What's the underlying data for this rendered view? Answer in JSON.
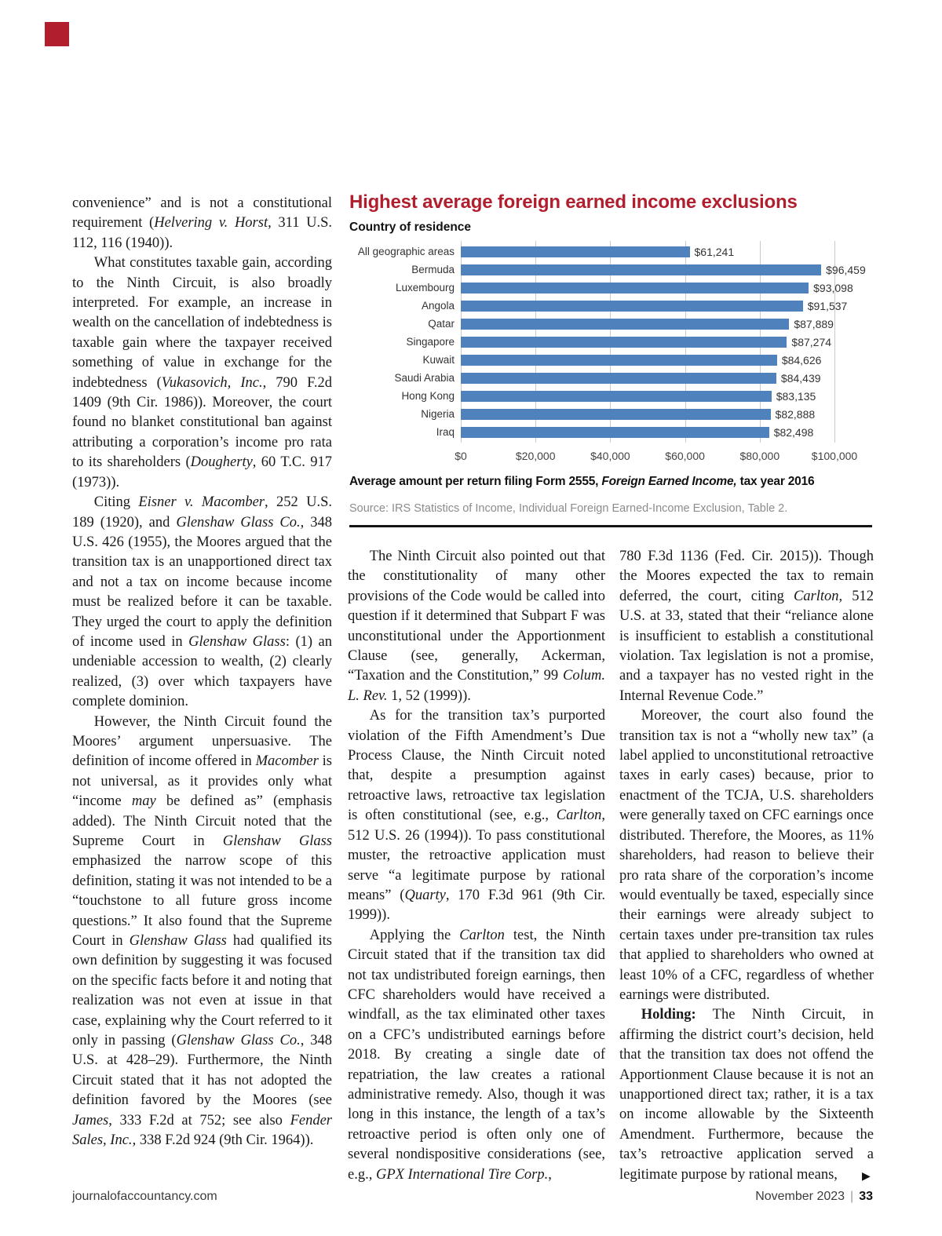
{
  "colors": {
    "accent_red": "#b11e2e",
    "bar_blue": "#4f81bd",
    "grid_gray": "#c9c9c9"
  },
  "page": {
    "footer_left": "journalofaccountancy.com",
    "footer_date": "November 2023",
    "footer_separator": "|",
    "footer_page": "33",
    "continued_marker": "▶"
  },
  "chart_data": {
    "type": "bar",
    "orientation": "horizontal",
    "title": "Highest average foreign earned income exclusions",
    "axis_label": "Country of residence",
    "categories": [
      "All geographic areas",
      "Bermuda",
      "Luxembourg",
      "Angola",
      "Qatar",
      "Singapore",
      "Kuwait",
      "Saudi Arabia",
      "Hong Kong",
      "Nigeria",
      "Iraq"
    ],
    "values": [
      61241,
      96459,
      93098,
      91537,
      87889,
      87274,
      84626,
      84439,
      83135,
      82888,
      82498
    ],
    "value_labels": [
      "$61,241",
      "$96,459",
      "$93,098",
      "$91,537",
      "$87,889",
      "$87,274",
      "$84,626",
      "$84,439",
      "$83,135",
      "$82,888",
      "$82,498"
    ],
    "x_ticks": [
      "$0",
      "$20,000",
      "$40,000",
      "$60,000",
      "$80,000",
      "$100,000"
    ],
    "xlim": [
      0,
      100000
    ],
    "bar_color": "#4f81bd",
    "grid": true,
    "legend": "none",
    "caption": "Average amount per return filing Form 2555, *Foreign Earned Income,* tax year 2016",
    "source": "Source: IRS Statistics of Income, Individual Foreign Earned-Income Exclusion, Table 2."
  },
  "article": {
    "col1": [
      {
        "indent": false,
        "text": "convenience” and is not a constitutional requirement (*Helvering v. Horst*, 311 U.S. 112, 116 (1940))."
      },
      {
        "indent": true,
        "text": "What constitutes taxable gain, according to the Ninth Circuit, is also broadly interpreted. For example, an increase in wealth on the cancellation of indebtedness is taxable gain where the taxpayer received something of value in exchange for the indebtedness (*Vukasovich, Inc.*, 790 F.2d 1409 (9th Cir. 1986)). Moreover, the court found no blanket constitutional ban against attributing a corporation’s income pro rata to its shareholders (*Dougherty*, 60 T.C. 917 (1973))."
      },
      {
        "indent": true,
        "text": "Citing *Eisner v. Macomber*, 252 U.S. 189 (1920), and *Glenshaw Glass Co.*, 348 U.S. 426 (1955), the Moores argued that the transition tax is an unapportioned direct tax and not a tax on income because income must be realized before it can be taxable. They urged the court to apply the definition of income used in *Glenshaw Glass*: (1) an undeniable accession to wealth, (2) clearly realized, (3) over which taxpayers have complete dominion."
      },
      {
        "indent": true,
        "text": "However, the Ninth Circuit found the Moores’ argument unpersuasive. The definition of income offered in *Macomber* is not universal, as it provides only what “income *may* be defined as” (emphasis added). The Ninth Circuit noted that the Supreme Court in *Glenshaw Glass* emphasized the narrow scope of this definition, stating it was not intended to be a “touchstone to all future gross income questions.” It also found that the Supreme Court in *Glenshaw Glass* had qualified its own definition by suggesting it was focused on the specific facts before it and noting that realization was not even at issue in that case, explaining why the Court referred to it only in passing (*Glenshaw Glass Co.*, 348 U.S. at 428–29). Furthermore, the Ninth Circuit stated that it has not adopted the definition favored by the Moores (see *James*, 333 F.2d at 752; see also *Fender Sales, Inc.*, 338 F.2d 924 (9th Cir. 1964))."
      }
    ],
    "col2": [
      {
        "indent": true,
        "text": "The Ninth Circuit also pointed out that the constitutionality of many other provisions of the Code would be called into question if it determined that Subpart F was unconstitutional under the Apportionment Clause (see, generally, Ackerman, “Taxation and the Constitution,” 99 *Colum. L. Rev.* 1, 52 (1999))."
      },
      {
        "indent": true,
        "text": "As for the transition tax’s purported violation of the Fifth Amendment’s Due Process Clause, the Ninth Circuit noted that, despite a presumption against retroactive laws, retroactive tax legislation is often constitutional (see, e.g., *Carlton*, 512 U.S. 26 (1994)). To pass constitutional muster, the retroactive application must serve “a legitimate purpose by rational means” (*Quarty*, 170 F.3d 961 (9th Cir. 1999))."
      },
      {
        "indent": true,
        "text": "Applying the *Carlton* test, the Ninth Circuit stated that if the transition tax did not tax undistributed foreign earnings, then CFC shareholders would have received a windfall, as the tax eliminated other taxes on a CFC’s undistributed earnings before 2018. By creating a single date of repatriation, the law creates a rational administrative remedy. Also, though it was long in this instance, the length of a tax’s retroactive period is often only one of several nondispositive considerations (see, e.g., *GPX International Tire Corp.*,"
      }
    ],
    "col3": [
      {
        "indent": false,
        "text": "780 F.3d 1136 (Fed. Cir. 2015)). Though the Moores expected the tax to remain deferred, the court, citing *Carlton*, 512 U.S. at 33, stated that their “reliance alone is insufficient to establish a constitutional violation. Tax legislation is not a promise, and a taxpayer has no vested right in the Internal Revenue Code.”"
      },
      {
        "indent": true,
        "text": "Moreover, the court also found the transition tax is not a “wholly new tax” (a label applied to unconstitutional retroactive taxes in early cases) because, prior to enactment of the TCJA, U.S. shareholders were generally taxed on CFC earnings once distributed. Therefore, the Moores, as 11% shareholders, had reason to believe their pro rata share of the corporation’s income would eventually be taxed, especially since their earnings were already subject to certain taxes under pre-transition tax rules that applied to shareholders who owned at least 10% of a CFC, regardless of whether earnings were distributed."
      },
      {
        "indent": true,
        "text": "**Holding:** The Ninth Circuit, in affirming the district court’s decision, held that the transition tax does not offend the Apportionment Clause because it is not an unapportioned direct tax; rather, it is a tax on income allowable by the Sixteenth Amendment. Furthermore, because the tax’s retroactive application served a legitimate purpose by rational means,"
      }
    ]
  }
}
